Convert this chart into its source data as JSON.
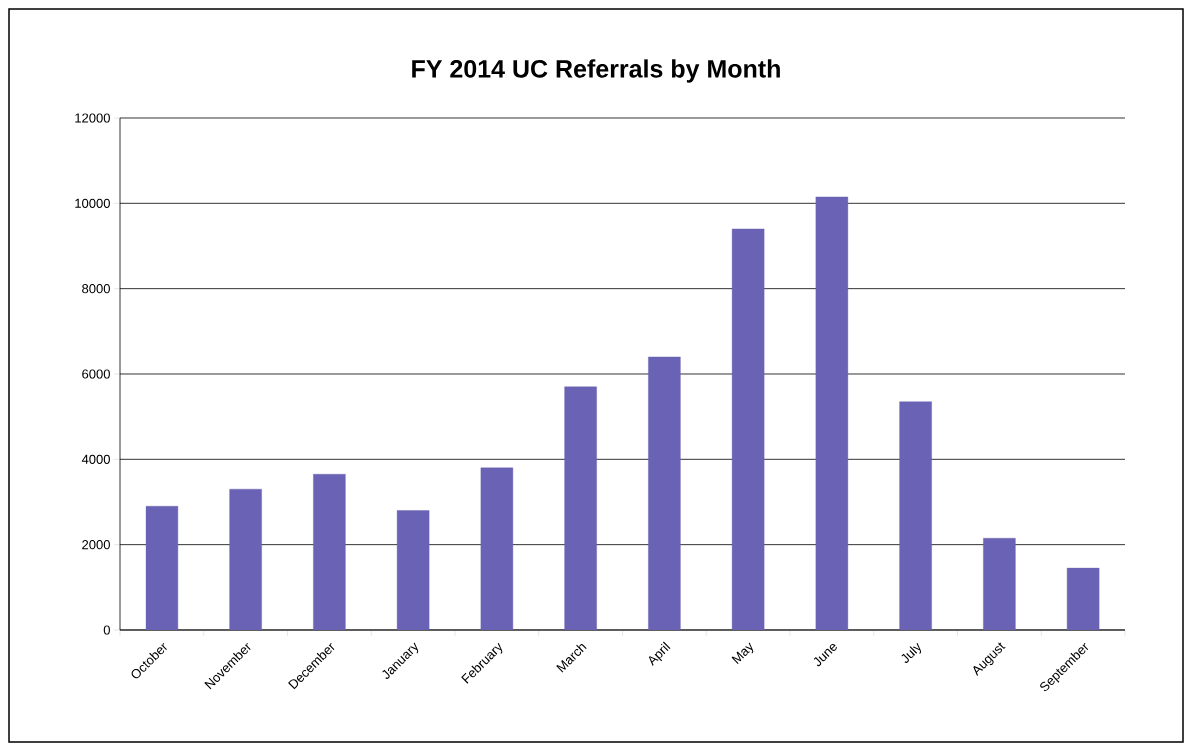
{
  "chart_data": {
    "type": "bar",
    "title": "FY 2014 UC Referrals by Month",
    "categories": [
      "October",
      "November",
      "December",
      "January",
      "February",
      "March",
      "April",
      "May",
      "June",
      "July",
      "August",
      "September"
    ],
    "values": [
      2900,
      3300,
      3650,
      2800,
      3800,
      5700,
      6400,
      9400,
      10150,
      5350,
      2150,
      1450
    ],
    "color": "#6a62b4",
    "ylim": [
      0,
      12000
    ],
    "yticks": [
      0,
      2000,
      4000,
      6000,
      8000,
      10000,
      12000
    ],
    "grid": "y"
  }
}
